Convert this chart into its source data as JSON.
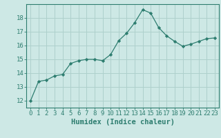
{
  "x": [
    0,
    1,
    2,
    3,
    4,
    5,
    6,
    7,
    8,
    9,
    10,
    11,
    12,
    13,
    14,
    15,
    16,
    17,
    18,
    19,
    20,
    21,
    22,
    23
  ],
  "y": [
    12.0,
    13.4,
    13.5,
    13.8,
    13.9,
    14.7,
    14.9,
    15.0,
    15.0,
    14.9,
    15.35,
    16.35,
    16.9,
    17.65,
    18.6,
    18.35,
    17.3,
    16.7,
    16.3,
    15.95,
    16.1,
    16.3,
    16.5,
    16.55
  ],
  "xlabel": "Humidex (Indice chaleur)",
  "ylabel": "",
  "title": "",
  "xlim": [
    -0.5,
    23.5
  ],
  "ylim": [
    11.5,
    19.0
  ],
  "yticks": [
    12,
    13,
    14,
    15,
    16,
    17,
    18
  ],
  "xticks": [
    0,
    1,
    2,
    3,
    4,
    5,
    6,
    7,
    8,
    9,
    10,
    11,
    12,
    13,
    14,
    15,
    16,
    17,
    18,
    19,
    20,
    21,
    22,
    23
  ],
  "line_color": "#2d7d6f",
  "marker": "D",
  "marker_size": 2.2,
  "bg_color": "#cde8e5",
  "grid_color": "#aed0cc",
  "axis_color": "#2d7d6f",
  "label_color": "#2d7d6f",
  "tick_color": "#2d7d6f",
  "xlabel_fontsize": 7.5,
  "tick_fontsize": 6.5
}
